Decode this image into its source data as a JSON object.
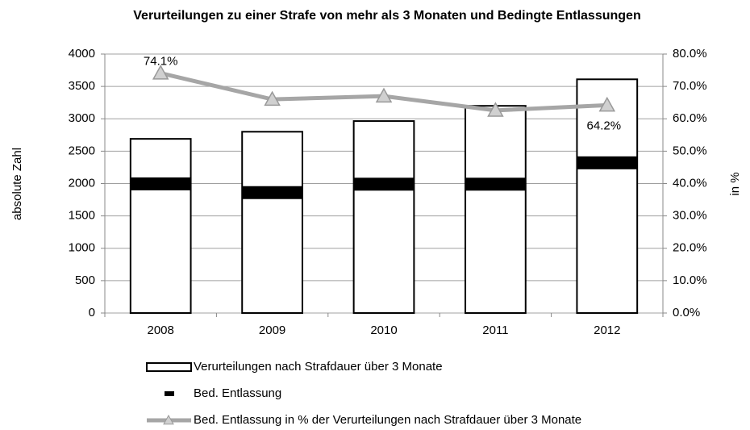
{
  "chart_data": {
    "type": "bar",
    "title": "Verurteilungen zu einer Strafe von mehr als 3 Monaten und Bedingte Entlassungen",
    "y_label": "absolute Zahl",
    "y2_label": "in %",
    "categories": [
      "2008",
      "2009",
      "2010",
      "2011",
      "2012"
    ],
    "series": [
      {
        "name": "Verurteilungen nach Strafdauer über 3 Monate",
        "type": "bar",
        "color": "#ffffff",
        "values": [
          2690,
          2800,
          2965,
          3200,
          3610
        ]
      },
      {
        "name": "Bed. Entlassung",
        "type": "marker",
        "color": "#000000",
        "values": [
          1995,
          1860,
          1990,
          1990,
          2320
        ]
      },
      {
        "name": "Bed. Entlassung in % der Verurteilungen nach Strafdauer über 3 Monate",
        "type": "line",
        "axis": "y2",
        "color": "#a6a6a6",
        "values": [
          74.1,
          66.0,
          67.0,
          62.6,
          64.2
        ],
        "value_labels": [
          "74.1%",
          null,
          null,
          null,
          "64.2%"
        ]
      }
    ],
    "ylim": [
      0,
      4000
    ],
    "yticks": [
      0,
      500,
      1000,
      1500,
      2000,
      2500,
      3000,
      3500,
      4000
    ],
    "y2lim": [
      0,
      80
    ],
    "y2ticks": [
      {
        "value": 0,
        "label": "0.0%"
      },
      {
        "value": 10,
        "label": "10.0%"
      },
      {
        "value": 20,
        "label": "20.0%"
      },
      {
        "value": 30,
        "label": "30.0%"
      },
      {
        "value": 40,
        "label": "40.0%"
      },
      {
        "value": 50,
        "label": "50.0%"
      },
      {
        "value": 60,
        "label": "60.0%"
      },
      {
        "value": 70,
        "label": "70.0%"
      },
      {
        "value": 80,
        "label": "80.0%"
      }
    ],
    "grid": true
  }
}
